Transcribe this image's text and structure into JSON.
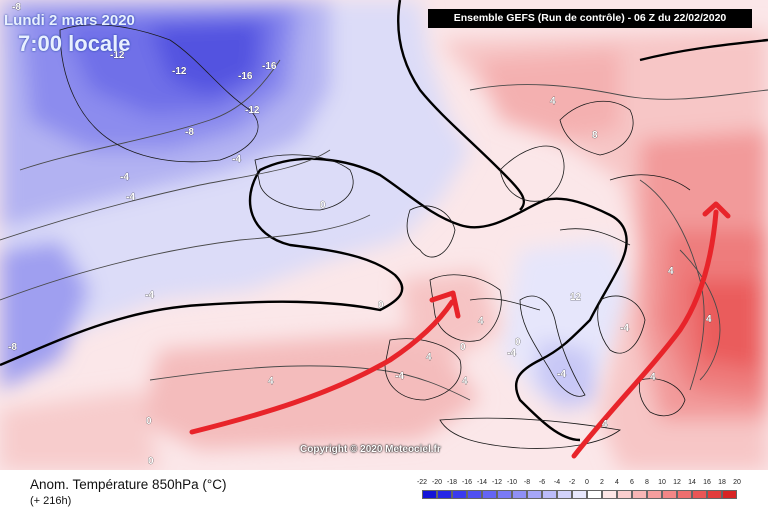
{
  "header": {
    "date": "Lundi 2 mars 2020",
    "local_time": "7:00 locale",
    "run_info": "Ensemble GEFS  (Run de contrôle)  -  06 Z du 22/02/2020"
  },
  "map": {
    "copyright": "Copyright © 2020 Meteociel.fr",
    "contour_labels": [
      "-8",
      "-12",
      "-12",
      "-16",
      "-16",
      "-12",
      "-8",
      "-4",
      "-4",
      "-4",
      "-4",
      "-8",
      "0",
      "0",
      "0",
      "0",
      "0",
      "4",
      "4",
      "4",
      "4",
      "4",
      "8",
      "4",
      "4",
      "4",
      "4",
      "12",
      "-4",
      "-4",
      "-4",
      "-4",
      "0",
      "0"
    ],
    "arrows": 2,
    "arrow_color": "#e8242a"
  },
  "footer": {
    "title": "Anom. Température 850hPa (°C)",
    "lead": "(+ 216h)"
  },
  "legend": {
    "ticks": [
      "-22",
      "-20",
      "-18",
      "-16",
      "-14",
      "-12",
      "-10",
      "-8",
      "-6",
      "-4",
      "-2",
      "0",
      "2",
      "4",
      "6",
      "8",
      "10",
      "12",
      "14",
      "16",
      "18",
      "20"
    ],
    "colors": [
      "#1414d8",
      "#2626e6",
      "#3a3aee",
      "#5050f2",
      "#6565f4",
      "#7a7af6",
      "#9090f6",
      "#a6a6f8",
      "#bcbcfa",
      "#d2d2fb",
      "#e8e8fd",
      "#ffffff",
      "#fde6e6",
      "#fbcece",
      "#f8b6b6",
      "#f59e9e",
      "#f28686",
      "#ee6e6e",
      "#ea5656",
      "#e23c3c",
      "#d82424"
    ]
  }
}
